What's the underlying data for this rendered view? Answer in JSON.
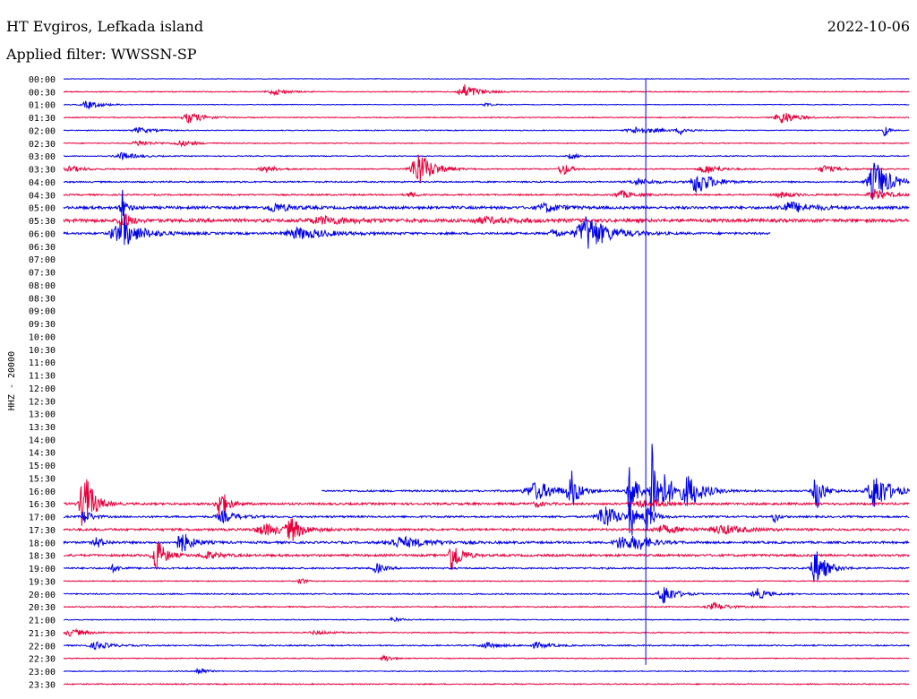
{
  "header": {
    "station": "HT Evgiros, Lefkada island",
    "date": "2022-10-06",
    "filter": "Applied filter: WWSSN-SP"
  },
  "chart_data": {
    "type": "line",
    "subtype": "helicorder",
    "ylabel": "HHZ - 20000",
    "colors": {
      "blue": "#0000e6",
      "red": "#e6003c"
    },
    "row_labels": [
      "00:00",
      "00:30",
      "01:00",
      "01:30",
      "02:00",
      "02:30",
      "03:00",
      "03:30",
      "04:00",
      "04:30",
      "05:00",
      "05:30",
      "06:00",
      "06:30",
      "07:00",
      "07:30",
      "08:00",
      "08:30",
      "09:00",
      "09:30",
      "10:00",
      "10:30",
      "11:00",
      "11:30",
      "12:00",
      "12:30",
      "13:00",
      "13:30",
      "14:00",
      "14:30",
      "15:00",
      "15:30",
      "16:00",
      "16:30",
      "17:00",
      "17:30",
      "18:00",
      "18:30",
      "19:00",
      "19:30",
      "20:00",
      "20:30",
      "21:00",
      "21:30",
      "22:00",
      "22:30",
      "23:00",
      "23:30"
    ],
    "traces": [
      {
        "row": 0,
        "color": "blue",
        "x0": 0,
        "x1": 1,
        "noise": 0.3,
        "events": []
      },
      {
        "row": 1,
        "color": "red",
        "x0": 0,
        "x1": 1,
        "noise": 0.5,
        "events": [
          [
            0.25,
            3,
            0.02
          ],
          [
            0.475,
            8,
            0.02
          ]
        ]
      },
      {
        "row": 2,
        "color": "blue",
        "x0": 0,
        "x1": 1,
        "noise": 0.4,
        "events": [
          [
            0.03,
            4,
            0.02
          ],
          [
            0.5,
            2,
            0.01
          ]
        ]
      },
      {
        "row": 3,
        "color": "red",
        "x0": 0,
        "x1": 1,
        "noise": 0.5,
        "events": [
          [
            0.15,
            6,
            0.02
          ],
          [
            0.85,
            7,
            0.02
          ]
        ]
      },
      {
        "row": 4,
        "color": "blue",
        "x0": 0,
        "x1": 1,
        "noise": 0.5,
        "events": [
          [
            0.09,
            3,
            0.02
          ],
          [
            0.68,
            4,
            0.03
          ],
          [
            0.73,
            4,
            0.01
          ],
          [
            0.97,
            8,
            0.005
          ]
        ]
      },
      {
        "row": 5,
        "color": "red",
        "x0": 0,
        "x1": 1,
        "noise": 0.5,
        "events": [
          [
            0.09,
            3,
            0.02
          ],
          [
            0.14,
            3,
            0.02
          ]
        ]
      },
      {
        "row": 6,
        "color": "blue",
        "x0": 0,
        "x1": 1,
        "noise": 0.5,
        "events": [
          [
            0.07,
            4,
            0.02
          ],
          [
            0.6,
            3,
            0.01
          ]
        ]
      },
      {
        "row": 7,
        "color": "red",
        "x0": 0,
        "x1": 1,
        "noise": 0.6,
        "events": [
          [
            0.01,
            3,
            0.02
          ],
          [
            0.24,
            3,
            0.02
          ],
          [
            0.42,
            20,
            0.02
          ],
          [
            0.59,
            8,
            0.01
          ],
          [
            0.76,
            5,
            0.02
          ],
          [
            0.9,
            4,
            0.02
          ]
        ]
      },
      {
        "row": 8,
        "color": "blue",
        "x0": 0,
        "x1": 1,
        "noise": 0.8,
        "events": [
          [
            0.68,
            4,
            0.02
          ],
          [
            0.75,
            14,
            0.02
          ],
          [
            0.96,
            24,
            0.02
          ]
        ]
      },
      {
        "row": 9,
        "color": "red",
        "x0": 0,
        "x1": 1,
        "noise": 0.8,
        "events": [
          [
            0.41,
            3,
            0.01
          ],
          [
            0.66,
            4,
            0.02
          ],
          [
            0.85,
            3,
            0.02
          ],
          [
            0.96,
            6,
            0.02
          ]
        ]
      },
      {
        "row": 10,
        "color": "blue",
        "x0": 0,
        "x1": 1,
        "noise": 1.5,
        "events": [
          [
            0.07,
            6,
            0.01
          ],
          [
            0.25,
            5,
            0.02
          ],
          [
            0.57,
            5,
            0.02
          ],
          [
            0.86,
            6,
            0.03
          ]
        ]
      },
      {
        "row": 11,
        "color": "red",
        "x0": 0,
        "x1": 1,
        "noise": 1.8,
        "events": [
          [
            0.07,
            12,
            0.01
          ],
          [
            0.31,
            4,
            0.04
          ],
          [
            0.5,
            3,
            0.04
          ]
        ]
      },
      {
        "row": 12,
        "color": "blue",
        "x0": 0,
        "x1": 0.835,
        "noise": 1.2,
        "events": [
          [
            0.06,
            12,
            0.01
          ],
          [
            0.07,
            45,
            0.005
          ],
          [
            0.09,
            6,
            0.03
          ],
          [
            0.28,
            6,
            0.04
          ],
          [
            0.62,
            20,
            0.03
          ],
          [
            0.58,
            6,
            0.01
          ]
        ]
      },
      {
        "row": 32,
        "color": "blue",
        "x0": 0.305,
        "x1": 1,
        "noise": 1.0,
        "events": [
          [
            0.56,
            10,
            0.03
          ],
          [
            0.6,
            22,
            0.01
          ],
          [
            0.67,
            30,
            0.01
          ],
          [
            0.695,
            80,
            0.005
          ],
          [
            0.71,
            18,
            0.02
          ],
          [
            0.74,
            16,
            0.02
          ],
          [
            0.89,
            22,
            0.01
          ],
          [
            0.96,
            22,
            0.02
          ]
        ]
      },
      {
        "row": 33,
        "color": "red",
        "x0": 0,
        "x1": 1,
        "noise": 1.2,
        "events": [
          [
            0.025,
            40,
            0.012
          ],
          [
            0.185,
            20,
            0.01
          ],
          [
            0.56,
            3,
            0.01
          ],
          [
            0.68,
            4,
            0.02
          ],
          [
            0.7,
            3,
            0.01
          ]
        ]
      },
      {
        "row": 34,
        "color": "blue",
        "x0": 0,
        "x1": 1,
        "noise": 1.0,
        "events": [
          [
            0.025,
            8,
            0.01
          ],
          [
            0.19,
            6,
            0.02
          ],
          [
            0.64,
            14,
            0.02
          ],
          [
            0.67,
            30,
            0.005
          ],
          [
            0.69,
            14,
            0.01
          ],
          [
            0.84,
            8,
            0.005
          ]
        ]
      },
      {
        "row": 35,
        "color": "red",
        "x0": 0,
        "x1": 1,
        "noise": 1.2,
        "events": [
          [
            0.24,
            6,
            0.03
          ],
          [
            0.27,
            12,
            0.015
          ],
          [
            0.71,
            4,
            0.03
          ],
          [
            0.78,
            5,
            0.03
          ]
        ]
      },
      {
        "row": 36,
        "color": "blue",
        "x0": 0,
        "x1": 1,
        "noise": 1.2,
        "events": [
          [
            0.04,
            6,
            0.01
          ],
          [
            0.14,
            12,
            0.015
          ],
          [
            0.4,
            6,
            0.04
          ],
          [
            0.66,
            8,
            0.02
          ],
          [
            0.68,
            6,
            0.02
          ]
        ]
      },
      {
        "row": 37,
        "color": "red",
        "x0": 0,
        "x1": 1,
        "noise": 1.2,
        "events": [
          [
            0.11,
            20,
            0.012
          ],
          [
            0.17,
            4,
            0.02
          ],
          [
            0.46,
            20,
            0.012
          ]
        ]
      },
      {
        "row": 38,
        "color": "blue",
        "x0": 0,
        "x1": 1,
        "noise": 0.9,
        "events": [
          [
            0.06,
            4,
            0.01
          ],
          [
            0.37,
            6,
            0.01
          ],
          [
            0.89,
            20,
            0.015
          ]
        ]
      },
      {
        "row": 39,
        "color": "red",
        "x0": 0,
        "x1": 1,
        "noise": 0.5,
        "events": [
          [
            0.28,
            6,
            0.005
          ]
        ]
      },
      {
        "row": 40,
        "color": "blue",
        "x0": 0,
        "x1": 1,
        "noise": 0.7,
        "events": [
          [
            0.71,
            12,
            0.015
          ],
          [
            0.82,
            6,
            0.015
          ]
        ]
      },
      {
        "row": 41,
        "color": "red",
        "x0": 0,
        "x1": 1,
        "noise": 0.6,
        "events": [
          [
            0.77,
            4,
            0.02
          ]
        ]
      },
      {
        "row": 42,
        "color": "blue",
        "x0": 0,
        "x1": 1,
        "noise": 0.5,
        "events": [
          [
            0.39,
            3,
            0.01
          ]
        ]
      },
      {
        "row": 43,
        "color": "red",
        "x0": 0,
        "x1": 1,
        "noise": 0.6,
        "events": [
          [
            0.01,
            4,
            0.02
          ],
          [
            0.3,
            2,
            0.02
          ]
        ]
      },
      {
        "row": 44,
        "color": "blue",
        "x0": 0,
        "x1": 1,
        "noise": 0.7,
        "events": [
          [
            0.04,
            4,
            0.02
          ],
          [
            0.5,
            3,
            0.02
          ],
          [
            0.56,
            3,
            0.02
          ]
        ]
      },
      {
        "row": 45,
        "color": "red",
        "x0": 0,
        "x1": 1,
        "noise": 0.5,
        "events": [
          [
            0.38,
            4,
            0.01
          ]
        ]
      },
      {
        "row": 46,
        "color": "blue",
        "x0": 0,
        "x1": 1,
        "noise": 0.5,
        "events": [
          [
            0.16,
            5,
            0.01
          ]
        ]
      },
      {
        "row": 47,
        "color": "red",
        "x0": 0,
        "x1": 1,
        "noise": 0.6,
        "events": []
      }
    ],
    "spikes": [
      {
        "x": 0.688,
        "y_from_row": 0,
        "y_to_row": 45.5,
        "color": "blue"
      }
    ]
  }
}
